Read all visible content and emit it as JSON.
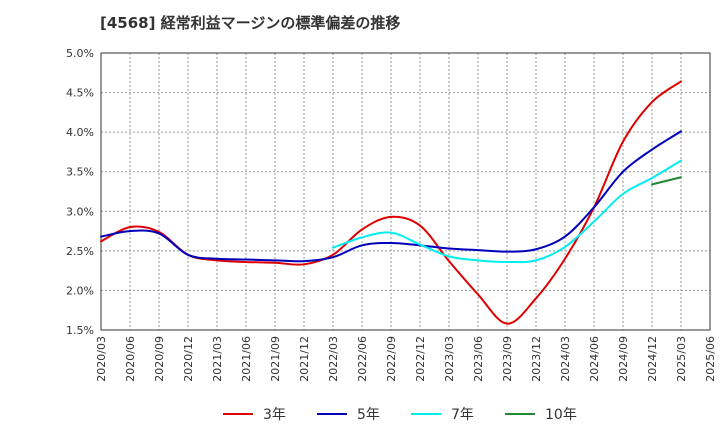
{
  "chart_data": {
    "type": "line",
    "title": "[4568]  経常利益マージンの標準偏差の推移",
    "xlabel": "",
    "ylabel": "",
    "x_ticks": [
      "2020/03",
      "2020/06",
      "2020/09",
      "2020/12",
      "2021/03",
      "2021/06",
      "2021/09",
      "2021/12",
      "2022/03",
      "2022/06",
      "2022/09",
      "2022/12",
      "2023/03",
      "2023/06",
      "2023/09",
      "2023/12",
      "2024/03",
      "2024/06",
      "2024/09",
      "2024/12",
      "2025/03",
      "2025/06"
    ],
    "y_ticks": [
      "1.5%",
      "2.0%",
      "2.5%",
      "3.0%",
      "3.5%",
      "4.0%",
      "4.5%",
      "5.0%"
    ],
    "ylim": [
      1.5,
      5.0
    ],
    "grid": true,
    "legend_position": "bottom",
    "series": [
      {
        "name": "3年",
        "color": "#dd0000",
        "x": [
          "2020/03",
          "2020/06",
          "2020/09",
          "2020/12",
          "2021/03",
          "2021/06",
          "2021/09",
          "2021/12",
          "2022/03",
          "2022/06",
          "2022/09",
          "2022/12",
          "2023/03",
          "2023/06",
          "2023/09",
          "2023/12",
          "2024/03",
          "2024/06",
          "2024/09",
          "2024/12",
          "2025/03"
        ],
        "values": [
          2.62,
          2.8,
          2.74,
          2.45,
          2.38,
          2.36,
          2.35,
          2.33,
          2.45,
          2.77,
          2.93,
          2.82,
          2.37,
          1.95,
          1.58,
          1.9,
          2.4,
          3.05,
          3.88,
          4.38,
          4.64
        ]
      },
      {
        "name": "5年",
        "color": "#0000bb",
        "x": [
          "2020/03",
          "2020/06",
          "2020/09",
          "2020/12",
          "2021/03",
          "2021/06",
          "2021/09",
          "2021/12",
          "2022/03",
          "2022/06",
          "2022/09",
          "2022/12",
          "2023/03",
          "2023/06",
          "2023/09",
          "2023/12",
          "2024/03",
          "2024/06",
          "2024/09",
          "2024/12",
          "2025/03"
        ],
        "values": [
          2.68,
          2.75,
          2.72,
          2.45,
          2.4,
          2.39,
          2.38,
          2.37,
          2.42,
          2.57,
          2.6,
          2.57,
          2.53,
          2.51,
          2.49,
          2.52,
          2.68,
          3.05,
          3.5,
          3.78,
          4.01
        ]
      },
      {
        "name": "7年",
        "color": "#00eeee",
        "x": [
          "2022/03",
          "2022/06",
          "2022/09",
          "2022/12",
          "2023/03",
          "2023/06",
          "2023/09",
          "2023/12",
          "2024/03",
          "2024/06",
          "2024/09",
          "2024/12",
          "2025/03"
        ],
        "values": [
          2.54,
          2.67,
          2.73,
          2.58,
          2.43,
          2.38,
          2.36,
          2.38,
          2.55,
          2.87,
          3.22,
          3.42,
          3.64
        ]
      },
      {
        "name": "10年",
        "color": "#228833",
        "x": [
          "2024/12",
          "2025/03"
        ],
        "values": [
          3.34,
          3.43
        ]
      }
    ]
  }
}
